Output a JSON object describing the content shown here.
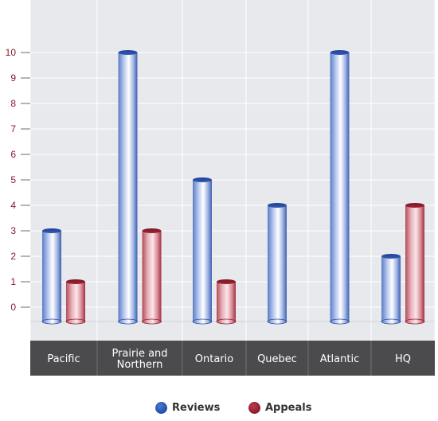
{
  "chart_data": {
    "type": "bar",
    "categories": [
      "Pacific",
      "Prairie and Northern",
      "Ontario",
      "Quebec",
      "Atlantic",
      "HQ"
    ],
    "series": [
      {
        "name": "Reviews",
        "values": [
          3,
          10,
          5,
          4,
          10,
          2
        ],
        "color": "#3a5fb5"
      },
      {
        "name": "Appeals",
        "values": [
          1,
          3,
          1,
          0,
          0,
          4
        ],
        "color": "#a8283c"
      }
    ],
    "yticks": [
      0,
      1,
      2,
      3,
      4,
      5,
      6,
      7,
      8,
      9,
      10
    ],
    "ylim": [
      0,
      10
    ],
    "grid": true,
    "legend_position": "bottom",
    "colors": {
      "plot_background": "#e7e9ec",
      "grid": "#ffffff",
      "category_band": "#4b4b4d",
      "tick_label": "#8b1a2d",
      "category_label": "#ffffff"
    }
  }
}
